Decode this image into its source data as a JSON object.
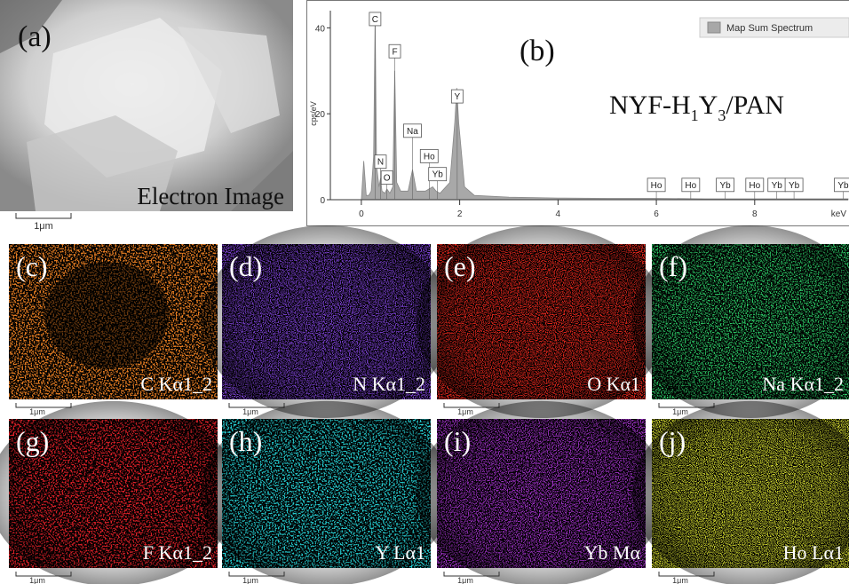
{
  "chart_data": {
    "type": "area",
    "panel_label": "(b)",
    "sample_parts": [
      "NYF-H",
      "1",
      "Y",
      "3",
      "/PAN"
    ],
    "ylabel": "cps/eV",
    "xlabel": "keV",
    "legend": "Map Sum Spectrum",
    "color": "#a8a8a8",
    "xlim": [
      -0.63,
      9.9
    ],
    "ylim": [
      0,
      44
    ],
    "xticks": [
      0,
      2,
      4,
      6,
      8
    ],
    "yticks": [
      0,
      20,
      40
    ],
    "x": [
      0,
      0.05,
      0.1,
      0.15,
      0.2,
      0.25,
      0.28,
      0.31,
      0.36,
      0.39,
      0.42,
      0.48,
      0.52,
      0.58,
      0.64,
      0.68,
      0.72,
      0.8,
      0.95,
      1.04,
      1.12,
      1.3,
      1.45,
      1.52,
      1.6,
      1.8,
      1.9,
      1.94,
      1.98,
      2.1,
      2.3,
      3,
      4,
      5,
      6,
      7,
      8,
      9,
      9.9
    ],
    "values": [
      0,
      9,
      1,
      1,
      2,
      10,
      43,
      8,
      3,
      5,
      2,
      1.5,
      2.5,
      1.5,
      3,
      30,
      4,
      2,
      2,
      7,
      2,
      2,
      3,
      2,
      1.5,
      4,
      18,
      26,
      18,
      3,
      1,
      0.6,
      0.4,
      0.3,
      0.3,
      0.2,
      0.2,
      0.2,
      0.2
    ],
    "peak_labels": [
      {
        "label": "C",
        "x": 0.28,
        "y": 40.5
      },
      {
        "label": "F",
        "x": 0.68,
        "y": 33
      },
      {
        "label": "Na",
        "x": 1.04,
        "y": 14.5
      },
      {
        "label": "Y",
        "x": 1.95,
        "y": 22.5
      },
      {
        "label": "N",
        "x": 0.39,
        "y": 7.3
      },
      {
        "label": "O",
        "x": 0.52,
        "y": 3.6
      },
      {
        "label": "Ho",
        "x": 1.38,
        "y": 8.6
      },
      {
        "label": "Yb",
        "x": 1.55,
        "y": 4.4
      },
      {
        "label": "Ho",
        "x": 6.0,
        "y": 1.9
      },
      {
        "label": "Ho",
        "x": 6.7,
        "y": 1.9
      },
      {
        "label": "Yb",
        "x": 7.4,
        "y": 1.9
      },
      {
        "label": "Ho",
        "x": 8.0,
        "y": 1.9
      },
      {
        "label": "Yb",
        "x": 8.45,
        "y": 1.9
      },
      {
        "label": "Yb",
        "x": 8.8,
        "y": 1.9
      },
      {
        "label": "Yb",
        "x": 9.8,
        "y": 1.9
      }
    ]
  },
  "electron_image": {
    "label": "(a)",
    "caption": "Electron Image",
    "scale": "1μm"
  },
  "panels": [
    {
      "label": "(c)",
      "caption": "C Kα1_2",
      "scale": "1μm",
      "color": "#e07a20"
    },
    {
      "label": "(d)",
      "caption": "N Kα1_2",
      "scale": "1μm",
      "color": "#7a3fd0"
    },
    {
      "label": "(e)",
      "caption": "O Kα1",
      "scale": "1μm",
      "color": "#e0281e"
    },
    {
      "label": "(f)",
      "caption": "Na Kα1_2",
      "scale": "1μm",
      "color": "#2ed06a"
    },
    {
      "label": "(g)",
      "caption": "F Kα1_2",
      "scale": "1μm",
      "color": "#e8202a"
    },
    {
      "label": "(h)",
      "caption": "Y Lα1",
      "scale": "1μm",
      "color": "#28d2d6"
    },
    {
      "label": "(i)",
      "caption": "Yb Mα",
      "scale": "1μm",
      "color": "#a030c8"
    },
    {
      "label": "(j)",
      "caption": "Ho Lα1",
      "scale": "1μm",
      "color": "#d8e030"
    }
  ]
}
